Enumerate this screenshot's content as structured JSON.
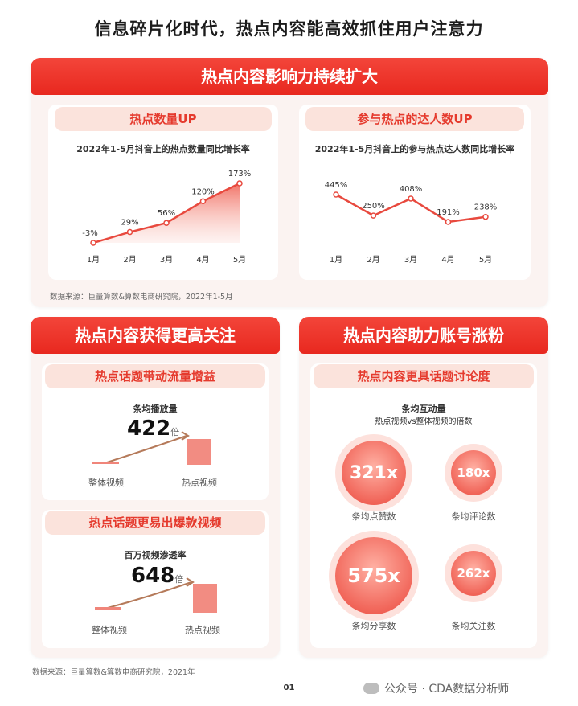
{
  "page_title": "信息碎片化时代，热点内容能高效抓住用户注意力",
  "top_banner": "热点内容影响力持续扩大",
  "left_chart_header": "热点数量UP",
  "right_chart_header": "参与热点的达人数UP",
  "source_top": "数据来源：巨量算数&算数电商研究院，2022年1-5月",
  "chart_data": [
    {
      "type": "area",
      "title": "2022年1-5月抖音上的热点数量同比增长率",
      "categories": [
        "1月",
        "2月",
        "3月",
        "4月",
        "5月"
      ],
      "values": [
        -3,
        29,
        56,
        120,
        173
      ],
      "value_labels": [
        "-3%",
        "29%",
        "56%",
        "120%",
        "173%"
      ],
      "grid": false
    },
    {
      "type": "line",
      "title": "2022年1-5月抖音上的参与热点达人数同比增长率",
      "categories": [
        "1月",
        "2月",
        "3月",
        "4月",
        "5月"
      ],
      "values": [
        445,
        250,
        408,
        191,
        238
      ],
      "value_labels": [
        "445%",
        "250%",
        "408%",
        "191%",
        "238%"
      ],
      "grid": false
    }
  ],
  "mid_left_banner": "热点内容获得更高关注",
  "mid_right_banner": "热点内容助力账号涨粉",
  "traffic": {
    "header": "热点话题带动流量增益",
    "metric": "条均播放量",
    "multiple": "422",
    "unit": "倍",
    "left_label": "整体视频",
    "right_label": "热点视频"
  },
  "viral": {
    "header": "热点话题更易出爆款视频",
    "metric": "百万视频渗透率",
    "multiple": "648",
    "unit": "倍",
    "left_label": "整体视频",
    "right_label": "热点视频"
  },
  "interaction": {
    "header": "热点内容更具话题讨论度",
    "metric": "条均互动量",
    "metric_sub": "热点视频vs整体视频的倍数",
    "items": [
      {
        "value": "321x",
        "label": "条均点赞数"
      },
      {
        "value": "180x",
        "label": "条均评论数"
      },
      {
        "value": "575x",
        "label": "条均分享数"
      },
      {
        "value": "262x",
        "label": "条均关注数"
      }
    ]
  },
  "source_bottom": "数据来源：巨量算数&算数电商研究院，2021年",
  "page_number": "01",
  "watermark": "公众号 · CDA数据分析师",
  "colors": {
    "accent": "#e8281f",
    "panel": "#fbf3f1",
    "subhead": "#fbe3dc"
  }
}
